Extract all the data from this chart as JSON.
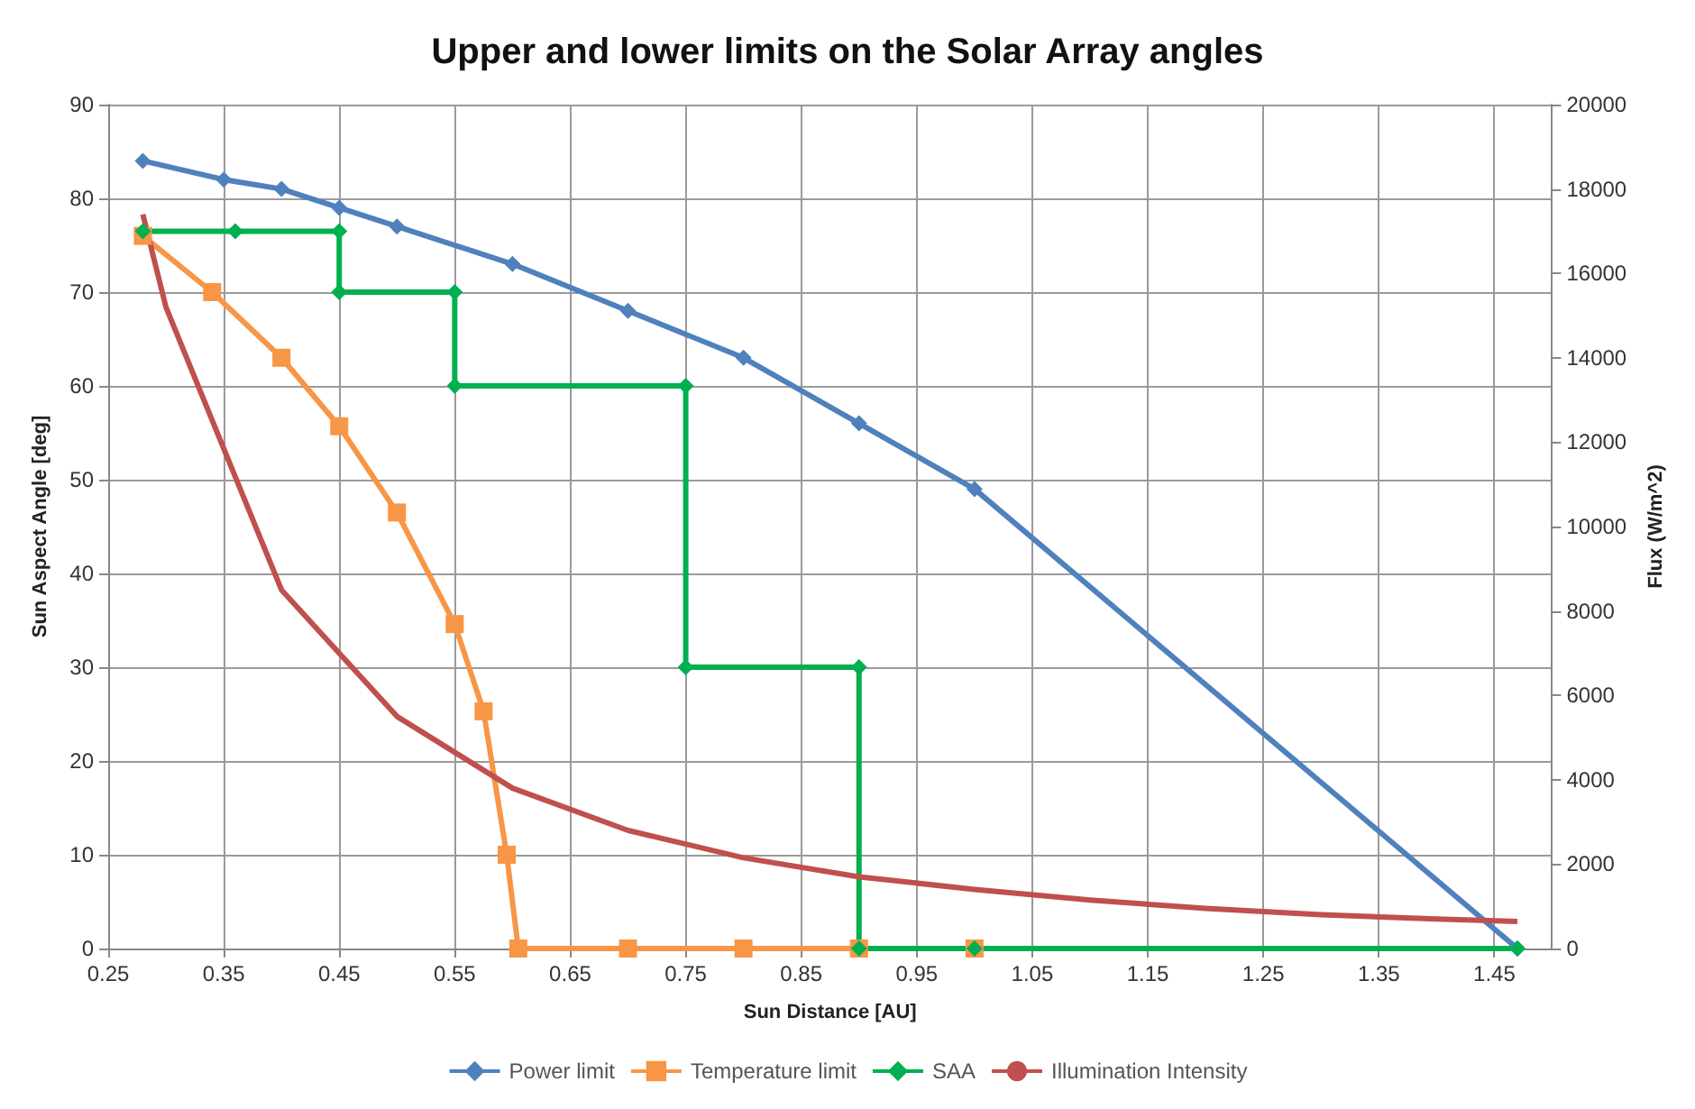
{
  "chart_data": {
    "type": "line",
    "title": "Upper and lower limits on the Solar Array angles",
    "xlabel": "Sun Distance [AU]",
    "ylabel": "Sun Aspect Angle [deg]",
    "y2label": "Flux (W/m^2)",
    "xlim": [
      0.25,
      1.5
    ],
    "xticks": [
      0.25,
      0.35,
      0.45,
      0.55,
      0.65,
      0.75,
      0.85,
      0.95,
      1.05,
      1.15,
      1.25,
      1.35,
      1.45
    ],
    "ylim": [
      0,
      90
    ],
    "yticks": [
      0,
      10,
      20,
      30,
      40,
      50,
      60,
      70,
      80,
      90
    ],
    "y2lim": [
      0,
      20000
    ],
    "y2ticks": [
      0,
      2000,
      4000,
      6000,
      8000,
      10000,
      12000,
      14000,
      16000,
      18000,
      20000
    ],
    "grid": true,
    "legend": "bottom",
    "line_style": "solid",
    "series": [
      {
        "name": "Power limit",
        "color": "#4f81bd",
        "marker": "diamond",
        "x": [
          0.28,
          0.35,
          0.4,
          0.45,
          0.5,
          0.6,
          0.7,
          0.8,
          0.9,
          1.0,
          1.47
        ],
        "values": [
          84,
          82,
          81,
          79,
          77,
          73,
          68,
          63,
          56,
          49,
          0
        ]
      },
      {
        "name": "Temperature limit",
        "color": "#f79646",
        "marker": "square",
        "x": [
          0.28,
          0.34,
          0.4,
          0.45,
          0.5,
          0.55,
          0.575,
          0.595,
          0.605,
          0.7,
          0.8,
          0.9,
          1.0
        ],
        "values": [
          76,
          70,
          63,
          55.7,
          46.5,
          34.6,
          25.3,
          10,
          0,
          0,
          0,
          0,
          0
        ]
      },
      {
        "name": "SAA",
        "color": "#00b050",
        "marker": "diamond",
        "x": [
          0.28,
          0.36,
          0.45,
          0.45,
          0.55,
          0.55,
          0.75,
          0.75,
          0.9,
          0.9,
          1.0,
          1.47
        ],
        "values": [
          76.5,
          76.5,
          76.5,
          70,
          70,
          60,
          60,
          30,
          30,
          0,
          0,
          0
        ]
      },
      {
        "name": "Illumination Intensity",
        "color": "#c0504d",
        "marker": "none",
        "axis": "y2",
        "x": [
          0.28,
          0.3,
          0.4,
          0.5,
          0.6,
          0.7,
          0.8,
          0.9,
          1.0,
          1.1,
          1.2,
          1.3,
          1.4,
          1.47
        ],
        "values": [
          17400,
          15200,
          8500,
          5500,
          3800,
          2800,
          2150,
          1700,
          1400,
          1150,
          950,
          800,
          700,
          640
        ]
      }
    ]
  }
}
